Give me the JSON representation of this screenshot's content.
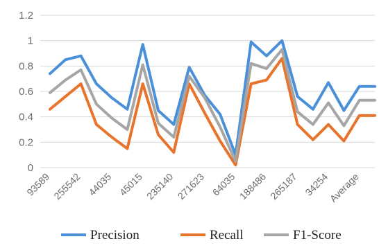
{
  "chart_data": {
    "type": "line",
    "title": "",
    "xlabel": "",
    "ylabel": "",
    "ylim": [
      0,
      1.2
    ],
    "yticks": [
      "0",
      "0.2",
      "0.4",
      "0.6",
      "0.8",
      "1",
      "1.2"
    ],
    "grid": true,
    "legend_position": "bottom",
    "x_tick_labels": [
      "93589",
      "255542",
      "44035",
      "45015",
      "235140",
      "271623",
      "64035",
      "188486",
      "265187",
      "34254",
      "Average"
    ],
    "point_count": 22,
    "label_every": 2,
    "series": [
      {
        "name": "Precision",
        "color": "#4a90d9",
        "values": [
          0.74,
          0.85,
          0.88,
          0.66,
          0.55,
          0.46,
          0.97,
          0.45,
          0.34,
          0.79,
          0.57,
          0.42,
          0.1,
          0.99,
          0.88,
          1.0,
          0.56,
          0.46,
          0.67,
          0.45,
          0.64,
          0.64
        ]
      },
      {
        "name": "Recall",
        "color": "#e8742c",
        "values": [
          0.46,
          0.56,
          0.66,
          0.34,
          0.24,
          0.15,
          0.66,
          0.26,
          0.12,
          0.66,
          0.43,
          0.21,
          0.02,
          0.66,
          0.69,
          0.86,
          0.34,
          0.22,
          0.34,
          0.21,
          0.41,
          0.41
        ]
      },
      {
        "name": "F1-Score",
        "color": "#a6a6a6",
        "values": [
          0.59,
          0.69,
          0.77,
          0.5,
          0.39,
          0.3,
          0.81,
          0.35,
          0.24,
          0.72,
          0.55,
          0.32,
          0.05,
          0.82,
          0.78,
          0.93,
          0.44,
          0.34,
          0.51,
          0.33,
          0.53,
          0.53
        ]
      }
    ]
  }
}
